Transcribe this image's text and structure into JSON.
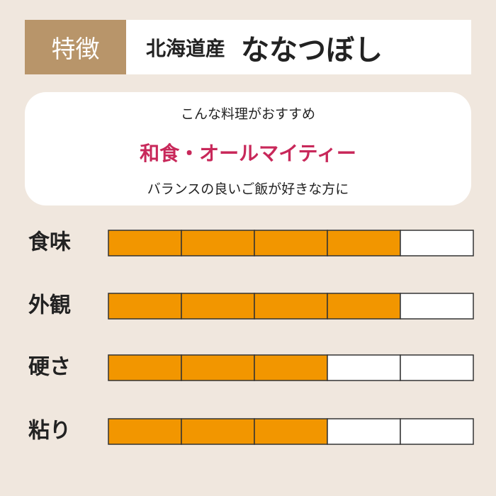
{
  "header": {
    "tag": "特徴",
    "origin": "北海道産",
    "name": "ななつぼし"
  },
  "recommend": {
    "lead": "こんな料理がおすすめ",
    "highlight": "和食・オールマイティー",
    "note": "バランスの良いご飯が好きな方に"
  },
  "ratings": {
    "segments": 5,
    "fill_color": "#f29600",
    "items": [
      {
        "label": "食味",
        "value": 4
      },
      {
        "label": "外観",
        "value": 4
      },
      {
        "label": "硬さ",
        "value": 3
      },
      {
        "label": "粘り",
        "value": 3
      }
    ]
  }
}
